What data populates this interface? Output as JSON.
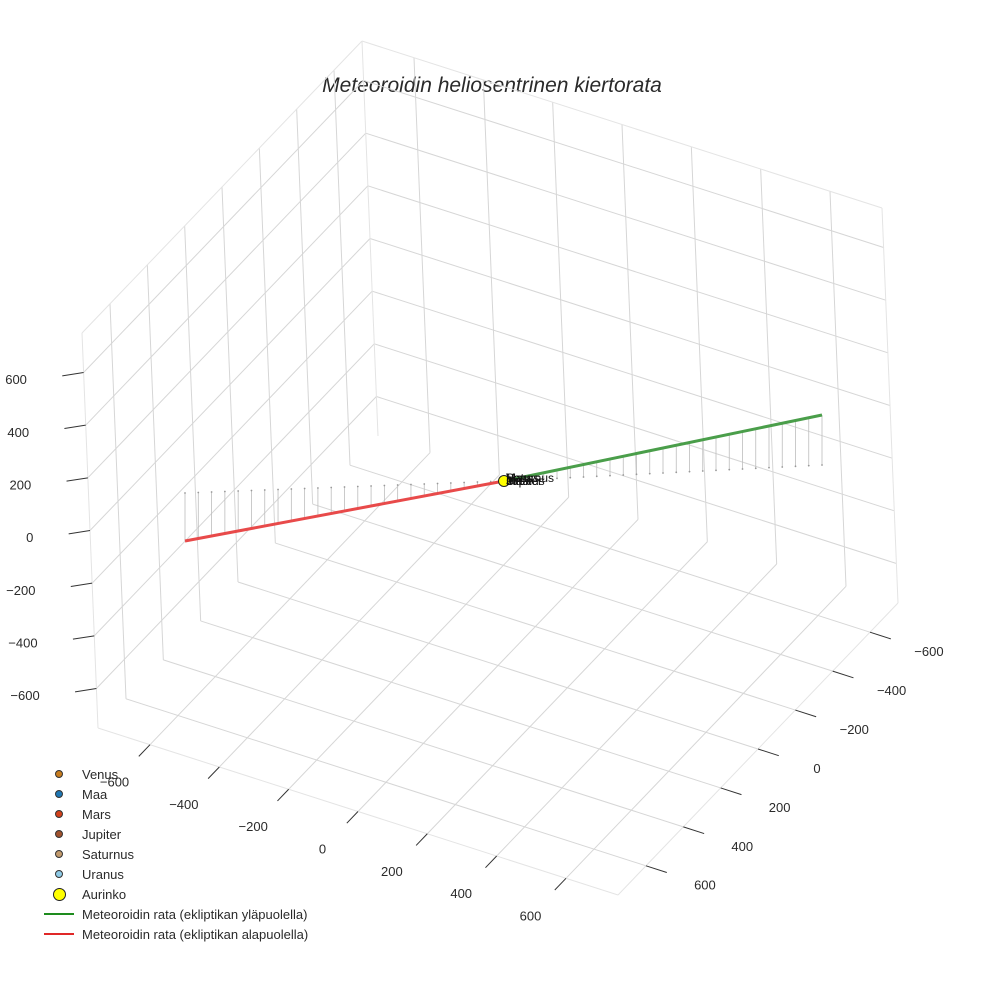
{
  "title": "Meteoroidin heliosentrinen kiertorata",
  "chart_data": {
    "type": "scatter3d",
    "title": "Meteoroidin heliosentrinen kiertorata",
    "axes": {
      "x": {
        "ticks": [
          -600,
          -400,
          -200,
          0,
          200,
          400,
          600
        ],
        "range": [
          -750,
          750
        ],
        "grid": true
      },
      "y": {
        "ticks": [
          -600,
          -400,
          -200,
          0,
          200,
          400,
          600
        ],
        "range": [
          -750,
          750
        ],
        "grid": true
      },
      "z": {
        "ticks": [
          -600,
          -400,
          -200,
          0,
          200,
          400,
          600
        ],
        "range": [
          -750,
          750
        ],
        "grid": true
      }
    },
    "legend_position": "bottom-left",
    "series": [
      {
        "name": "Venus",
        "type": "marker",
        "color": "#c77c1e",
        "x": 0,
        "y": 0,
        "z": 0
      },
      {
        "name": "Maa",
        "type": "marker",
        "color": "#1f77b4",
        "x": 0,
        "y": 0,
        "z": 0
      },
      {
        "name": "Mars",
        "type": "marker",
        "color": "#d2411b",
        "x": 0,
        "y": 0,
        "z": 0
      },
      {
        "name": "Jupiter",
        "type": "marker",
        "color": "#a0522d",
        "x": 0,
        "y": 0,
        "z": 0
      },
      {
        "name": "Saturnus",
        "type": "marker",
        "color": "#c29a6c",
        "x": 0,
        "y": 0,
        "z": 0
      },
      {
        "name": "Uranus",
        "type": "marker",
        "color": "#8ecae6",
        "x": 0,
        "y": 0,
        "z": 0
      },
      {
        "name": "Aurinko",
        "type": "marker",
        "color": "#ffff00",
        "size": "large",
        "x": 0,
        "y": 0,
        "z": 0
      },
      {
        "name": "Meteoroidin rata (ekliptikan yläpuolella)",
        "type": "line",
        "color": "#4a9e4a",
        "start": {
          "x": 0,
          "y": 0,
          "z": 0
        },
        "end": {
          "x": -560,
          "y": -1100,
          "z": 150
        }
      },
      {
        "name": "Meteoroidin rata (ekliptikan alapuolella)",
        "type": "line",
        "color": "#e84a4a",
        "start": {
          "x": -560,
          "y": 1000,
          "z": -120
        },
        "end": {
          "x": 0,
          "y": 0,
          "z": 0
        }
      }
    ],
    "point_labels": [
      "Venus",
      "Maa",
      "Mars",
      "Jupiter",
      "Saturnus",
      "Uranus"
    ],
    "annotations": "Vertical drop lines from orbit to ecliptic plane (z=0)"
  },
  "legend": [
    {
      "label": "Venus",
      "kind": "dot",
      "color": "#c77c1e"
    },
    {
      "label": "Maa",
      "kind": "dot",
      "color": "#1f77b4"
    },
    {
      "label": "Mars",
      "kind": "dot",
      "color": "#d2411b"
    },
    {
      "label": "Jupiter",
      "kind": "dot",
      "color": "#a0522d"
    },
    {
      "label": "Saturnus",
      "kind": "dot",
      "color": "#c29a6c"
    },
    {
      "label": "Uranus",
      "kind": "dot",
      "color": "#8ecae6"
    },
    {
      "label": "Aurinko",
      "kind": "bigdot",
      "color": "#ffff00"
    },
    {
      "label": "Meteoroidin rata (ekliptikan yläpuolella)",
      "kind": "line",
      "color": "#1e8c1e"
    },
    {
      "label": "Meteoroidin rata (ekliptikan alapuolella)",
      "kind": "line",
      "color": "#e02828"
    }
  ],
  "z_tick_labels": [
    "600",
    "400",
    "200",
    "0",
    "−200",
    "−400",
    "−600"
  ],
  "x_tick_labels": [
    "−600",
    "−400",
    "−200",
    "0",
    "200",
    "400",
    "600"
  ],
  "y_tick_labels": [
    "−600",
    "−400",
    "−200",
    "0",
    "200",
    "400",
    "600"
  ],
  "center_labels": [
    "Venus",
    "Maa",
    "Mars",
    "Jupiter",
    "Saturnus",
    "Uranus"
  ]
}
